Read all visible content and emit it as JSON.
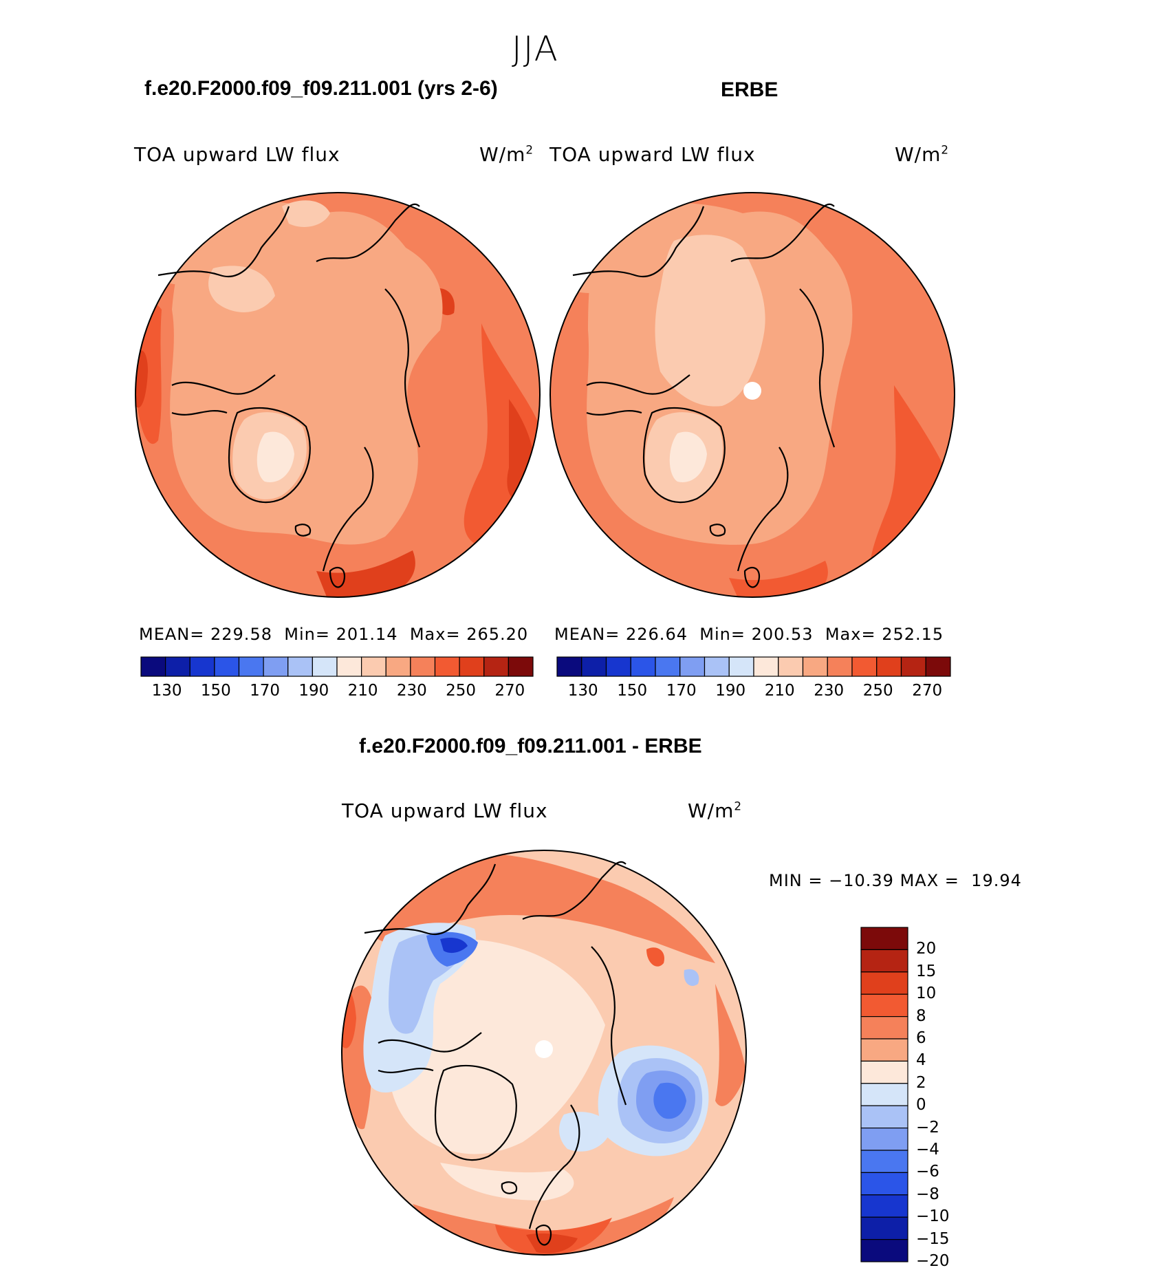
{
  "season": "JJA",
  "panels": [
    {
      "id": "model",
      "title": "f.e20.F2000.f09_f09.211.001 (yrs 2-6)",
      "variable": "TOA upward LW flux",
      "units_base": "W/m",
      "units_exp": "2",
      "stats": {
        "mean_label": "MEAN=",
        "mean": "229.58",
        "min_label": "Min=",
        "min": "201.14",
        "max_label": "Max=",
        "max": "265.20"
      }
    },
    {
      "id": "obs",
      "title": "ERBE",
      "variable": "TOA upward LW flux",
      "units_base": "W/m",
      "units_exp": "2",
      "stats": {
        "mean_label": "MEAN=",
        "mean": "226.64",
        "min_label": "Min=",
        "min": "200.53",
        "max_label": "Max=",
        "max": "252.15"
      }
    }
  ],
  "abs_colorbar": {
    "colors": [
      "#0a0a7d",
      "#0d1fa8",
      "#1736cf",
      "#2b55e8",
      "#4a77f0",
      "#7f9ef2",
      "#aac2f6",
      "#d5e5f9",
      "#fde8da",
      "#fbcbb0",
      "#f8a882",
      "#f5815a",
      "#f25a32",
      "#e0401c",
      "#b52413",
      "#7c0a0a"
    ],
    "ticks": [
      "130",
      "150",
      "170",
      "190",
      "210",
      "230",
      "250",
      "270"
    ]
  },
  "difference": {
    "title": "f.e20.F2000.f09_f09.211.001 - ERBE",
    "variable": "TOA upward LW flux",
    "units_base": "W/m",
    "units_exp": "2",
    "min_label": "MIN =",
    "min": "−10.39",
    "max_label": "MAX =",
    "max": "19.94",
    "colorbar": {
      "colors": [
        "#7c0a0a",
        "#b52413",
        "#e0401c",
        "#f25a32",
        "#f5815a",
        "#f8a882",
        "#fde8da",
        "#d5e5f9",
        "#aac2f6",
        "#7f9ef2",
        "#4a77f0",
        "#2b55e8",
        "#1736cf",
        "#0d1fa8",
        "#0a0a7d"
      ],
      "ticks": [
        "20",
        "15",
        "10",
        "8",
        "6",
        "4",
        "2",
        "0",
        "−2",
        "−4",
        "−6",
        "−8",
        "−10",
        "−15",
        "−20"
      ]
    }
  }
}
